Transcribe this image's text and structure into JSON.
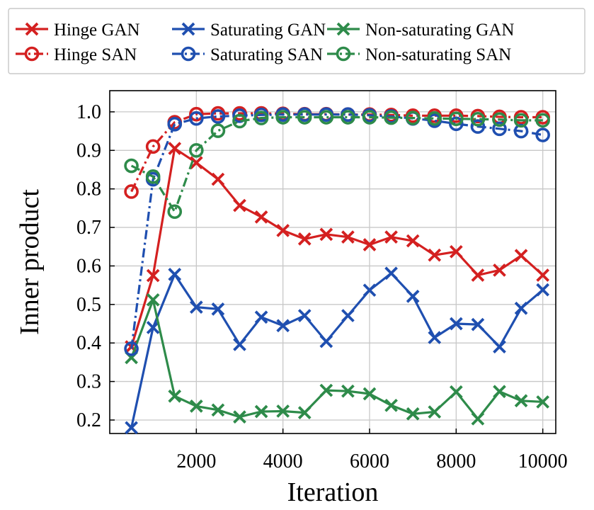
{
  "chart_data": {
    "type": "line",
    "xlabel": "Iteration",
    "ylabel": "Inner product",
    "xlim": [
      0,
      10300
    ],
    "ylim": [
      0.165,
      1.055
    ],
    "xticks": [
      2000,
      4000,
      6000,
      8000,
      10000
    ],
    "xtick_labels": [
      "2000",
      "4000",
      "6000",
      "8000",
      "10000"
    ],
    "yticks": [
      0.2,
      0.3,
      0.4,
      0.5,
      0.6,
      0.7,
      0.8,
      0.9,
      1.0
    ],
    "ytick_labels": [
      "0.2",
      "0.3",
      "0.4",
      "0.5",
      "0.6",
      "0.7",
      "0.8",
      "0.9",
      "1.0"
    ],
    "grid": true,
    "legend_position": "top",
    "x": [
      500,
      1000,
      1500,
      2000,
      2500,
      3000,
      3500,
      4000,
      4500,
      5000,
      5500,
      6000,
      6500,
      7000,
      7500,
      8000,
      8500,
      9000,
      9500,
      10000
    ],
    "series": [
      {
        "name": "Hinge GAN",
        "color": "#d42020",
        "marker": "x",
        "dash": "solid",
        "values": [
          0.39,
          0.575,
          0.905,
          0.868,
          0.825,
          0.757,
          0.727,
          0.692,
          0.67,
          0.682,
          0.675,
          0.655,
          0.675,
          0.665,
          0.628,
          0.637,
          0.576,
          0.589,
          0.627,
          0.576
        ]
      },
      {
        "name": "Saturating GAN",
        "color": "#1f4fb0",
        "marker": "x",
        "dash": "solid",
        "values": [
          0.18,
          0.44,
          0.578,
          0.493,
          0.488,
          0.396,
          0.467,
          0.445,
          0.471,
          0.404,
          0.471,
          0.537,
          0.581,
          0.521,
          0.414,
          0.45,
          0.448,
          0.39,
          0.49,
          0.538
        ]
      },
      {
        "name": "Non-saturating GAN",
        "color": "#2e8b4a",
        "marker": "x",
        "dash": "solid",
        "values": [
          0.362,
          0.512,
          0.262,
          0.236,
          0.226,
          0.208,
          0.222,
          0.223,
          0.219,
          0.277,
          0.275,
          0.268,
          0.238,
          0.216,
          0.221,
          0.273,
          0.203,
          0.274,
          0.25,
          0.247
        ]
      },
      {
        "name": "Hinge SAN",
        "color": "#d42020",
        "marker": "o",
        "dash": "dashdot",
        "values": [
          0.793,
          0.91,
          0.973,
          0.994,
          0.996,
          0.996,
          0.996,
          0.995,
          0.994,
          0.994,
          0.993,
          0.993,
          0.992,
          0.99,
          0.99,
          0.99,
          0.989,
          0.987,
          0.986,
          0.986
        ]
      },
      {
        "name": "Saturating SAN",
        "color": "#1f4fb0",
        "marker": "o",
        "dash": "dashdot",
        "values": [
          0.385,
          0.825,
          0.968,
          0.983,
          0.988,
          0.99,
          0.992,
          0.993,
          0.993,
          0.993,
          0.993,
          0.991,
          0.988,
          0.983,
          0.977,
          0.969,
          0.962,
          0.956,
          0.95,
          0.94
        ]
      },
      {
        "name": "Non-saturating SAN",
        "color": "#2e8b4a",
        "marker": "o",
        "dash": "dashdot",
        "values": [
          0.86,
          0.832,
          0.741,
          0.9,
          0.951,
          0.976,
          0.984,
          0.986,
          0.986,
          0.986,
          0.986,
          0.986,
          0.985,
          0.984,
          0.983,
          0.982,
          0.981,
          0.98,
          0.978,
          0.978
        ]
      }
    ],
    "legend": [
      {
        "label": "Hinge GAN",
        "series": 0
      },
      {
        "label": "Saturating GAN",
        "series": 1
      },
      {
        "label": "Non-saturating GAN",
        "series": 2
      },
      {
        "label": "Hinge SAN",
        "series": 3
      },
      {
        "label": "Saturating SAN",
        "series": 4
      },
      {
        "label": "Non-saturating SAN",
        "series": 5
      }
    ]
  }
}
